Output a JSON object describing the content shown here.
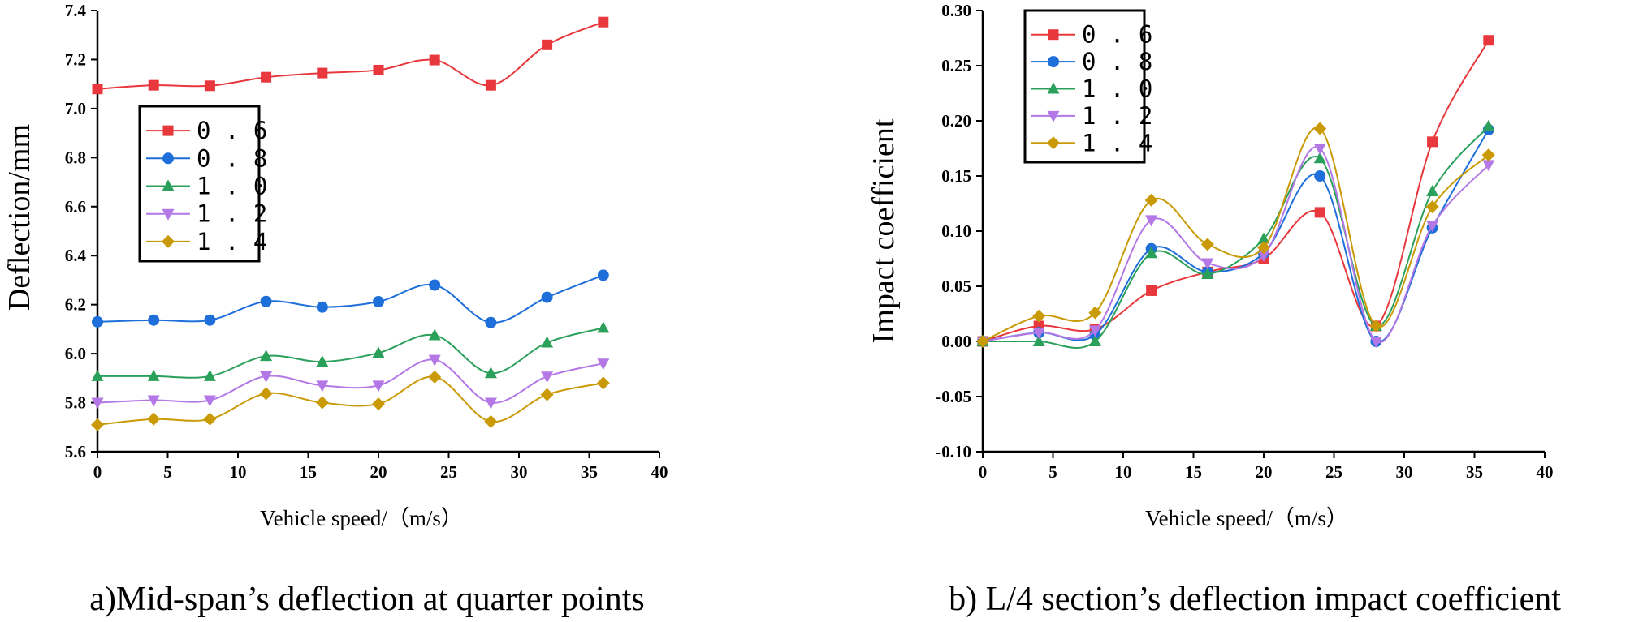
{
  "chart_data": [
    {
      "type": "line",
      "caption": "a)Mid-span’s deflection at quarter points",
      "xlabel": "Vehicle speed/（m/s）",
      "ylabel": "Deflection/mm",
      "xlim": [
        0,
        40
      ],
      "ylim": [
        5.6,
        7.4
      ],
      "xticks": [
        "0",
        "5",
        "10",
        "15",
        "20",
        "25",
        "30",
        "35",
        "40"
      ],
      "yticks": [
        "5.6",
        "5.8",
        "6.0",
        "6.2",
        "6.4",
        "6.6",
        "6.8",
        "7.0",
        "7.2",
        "7.4"
      ],
      "x": [
        0,
        4,
        8,
        12,
        16,
        20,
        24,
        28,
        32,
        36
      ],
      "legend_position": "upper-left",
      "series": [
        {
          "name": "0.6",
          "color": "#e8383d",
          "marker": "square",
          "values": [
            7.08,
            7.095,
            7.093,
            7.128,
            7.145,
            7.157,
            7.198,
            7.095,
            7.26,
            7.353
          ]
        },
        {
          "name": "0.8",
          "color": "#1e6fd9",
          "marker": "circle",
          "values": [
            6.13,
            6.137,
            6.137,
            6.213,
            6.19,
            6.212,
            6.28,
            6.127,
            6.23,
            6.32
          ]
        },
        {
          "name": "1.0",
          "color": "#2aa05a",
          "marker": "triangle-up",
          "values": [
            5.908,
            5.908,
            5.908,
            5.99,
            5.967,
            6.003,
            6.075,
            5.92,
            6.045,
            6.105
          ]
        },
        {
          "name": "1.2",
          "color": "#b377e6",
          "marker": "triangle-down",
          "values": [
            5.8,
            5.81,
            5.81,
            5.908,
            5.87,
            5.87,
            5.975,
            5.8,
            5.907,
            5.96
          ]
        },
        {
          "name": "1.4",
          "color": "#c99a06",
          "marker": "diamond",
          "values": [
            5.71,
            5.733,
            5.733,
            5.837,
            5.8,
            5.795,
            5.905,
            5.723,
            5.833,
            5.88
          ]
        }
      ]
    },
    {
      "type": "line",
      "caption": "b) L/4 section’s deflection impact coefficient",
      "xlabel": "Vehicle speed/（m/s）",
      "ylabel": "Impact coefficient",
      "xlim": [
        0,
        40
      ],
      "ylim": [
        -0.1,
        0.3
      ],
      "xticks": [
        "0",
        "5",
        "10",
        "15",
        "20",
        "25",
        "30",
        "35",
        "40"
      ],
      "yticks": [
        "-0.10",
        "-0.05",
        "0.00",
        "0.05",
        "0.10",
        "0.15",
        "0.20",
        "0.25",
        "0.30"
      ],
      "x": [
        0,
        4,
        8,
        12,
        16,
        20,
        24,
        28,
        32,
        36
      ],
      "legend_position": "upper-left",
      "series": [
        {
          "name": "0.6",
          "color": "#e8383d",
          "marker": "square",
          "values": [
            0,
            0.014,
            0.011,
            0.046,
            0.063,
            0.075,
            0.117,
            0.014,
            0.181,
            0.273
          ]
        },
        {
          "name": "0.8",
          "color": "#1e6fd9",
          "marker": "circle",
          "values": [
            0,
            0.008,
            0.006,
            0.084,
            0.063,
            0.08,
            0.15,
            0,
            0.103,
            0.192
          ]
        },
        {
          "name": "1.0",
          "color": "#2aa05a",
          "marker": "triangle-up",
          "values": [
            0,
            0,
            0,
            0.08,
            0.061,
            0.093,
            0.166,
            0.014,
            0.136,
            0.195
          ]
        },
        {
          "name": "1.2",
          "color": "#b377e6",
          "marker": "triangle-down",
          "values": [
            0,
            0.008,
            0.01,
            0.11,
            0.071,
            0.078,
            0.175,
            0,
            0.105,
            0.16
          ]
        },
        {
          "name": "1.4",
          "color": "#c99a06",
          "marker": "diamond",
          "values": [
            0,
            0.023,
            0.026,
            0.128,
            0.088,
            0.085,
            0.193,
            0.014,
            0.122,
            0.169
          ]
        }
      ]
    }
  ]
}
